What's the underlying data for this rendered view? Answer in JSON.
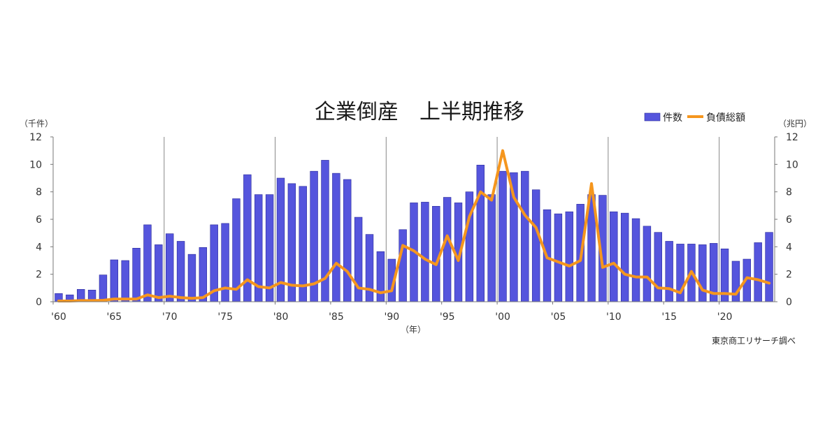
{
  "chart_data": {
    "type": "bar",
    "title": "企業倒産　上半期推移",
    "left_unit": "（千件）",
    "right_unit": "（兆円）",
    "xlabel": "（年）",
    "source": "東京商工リサーチ調べ",
    "legend": {
      "placement": "top-right",
      "bar_label": "件数",
      "line_label": "負債総額"
    },
    "colors": {
      "bar": "#5555dd",
      "bar_border": "#2a2a9a",
      "line": "#f5961e",
      "axis": "#777777",
      "divider": "#888888"
    },
    "ylim_left": [
      0,
      12
    ],
    "ylim_right": [
      0,
      12
    ],
    "left_ticks": [
      "0",
      "2",
      "4",
      "6",
      "8",
      "10",
      "12"
    ],
    "right_ticks": [
      "0",
      "2",
      "4",
      "6",
      "8",
      "10",
      "12"
    ],
    "x_tick_labels": [
      "'60",
      "'65",
      "'70",
      "'75",
      "'80",
      "'85",
      "'90",
      "'95",
      "'00",
      "'05",
      "'10",
      "'15",
      "'20"
    ],
    "decade_dividers": [
      1970,
      1980,
      1990,
      2000,
      2010,
      2020
    ],
    "years": [
      1960,
      1961,
      1962,
      1963,
      1964,
      1965,
      1966,
      1967,
      1968,
      1969,
      1970,
      1971,
      1972,
      1973,
      1974,
      1975,
      1976,
      1977,
      1978,
      1979,
      1980,
      1981,
      1982,
      1983,
      1984,
      1985,
      1986,
      1987,
      1988,
      1989,
      1990,
      1991,
      1992,
      1993,
      1994,
      1995,
      1996,
      1997,
      1998,
      1999,
      2000,
      2001,
      2002,
      2003,
      2004,
      2005,
      2006,
      2007,
      2008,
      2009,
      2010,
      2011,
      2012,
      2013,
      2014,
      2015,
      2016,
      2017,
      2018,
      2019,
      2020,
      2021,
      2022,
      2023,
      2024
    ],
    "series": [
      {
        "name": "件数",
        "type": "bar",
        "axis": "left",
        "values": [
          0.6,
          0.5,
          0.9,
          0.85,
          1.95,
          3.05,
          3.0,
          3.9,
          5.6,
          4.15,
          4.95,
          4.4,
          3.45,
          3.95,
          5.6,
          5.7,
          7.5,
          9.25,
          7.8,
          7.8,
          9.0,
          8.6,
          8.4,
          9.5,
          10.3,
          9.35,
          8.9,
          6.15,
          4.9,
          3.65,
          3.1,
          5.25,
          7.2,
          7.25,
          6.95,
          7.6,
          7.2,
          8.0,
          9.95,
          7.8,
          9.5,
          9.4,
          9.5,
          8.15,
          6.7,
          6.4,
          6.55,
          7.1,
          7.8,
          7.75,
          6.55,
          6.45,
          6.05,
          5.5,
          5.05,
          4.4,
          4.2,
          4.2,
          4.15,
          4.25,
          3.85,
          2.95,
          3.1,
          4.3,
          5.05
        ]
      },
      {
        "name": "負債総額",
        "type": "line",
        "axis": "right",
        "values": [
          0.05,
          0.05,
          0.08,
          0.08,
          0.1,
          0.2,
          0.2,
          0.2,
          0.5,
          0.3,
          0.4,
          0.3,
          0.25,
          0.3,
          0.8,
          1.0,
          0.9,
          1.6,
          1.1,
          1.0,
          1.4,
          1.2,
          1.15,
          1.3,
          1.7,
          2.8,
          2.2,
          1.0,
          0.9,
          0.65,
          0.8,
          4.1,
          3.7,
          3.1,
          2.7,
          4.8,
          3.0,
          6.2,
          8.0,
          7.4,
          11.0,
          7.6,
          6.3,
          5.4,
          3.2,
          2.9,
          2.6,
          3.0,
          8.6,
          2.5,
          2.8,
          2.0,
          1.8,
          1.8,
          1.0,
          0.95,
          0.65,
          2.2,
          0.85,
          0.6,
          0.6,
          0.55,
          1.75,
          1.6,
          1.35
        ]
      }
    ]
  }
}
